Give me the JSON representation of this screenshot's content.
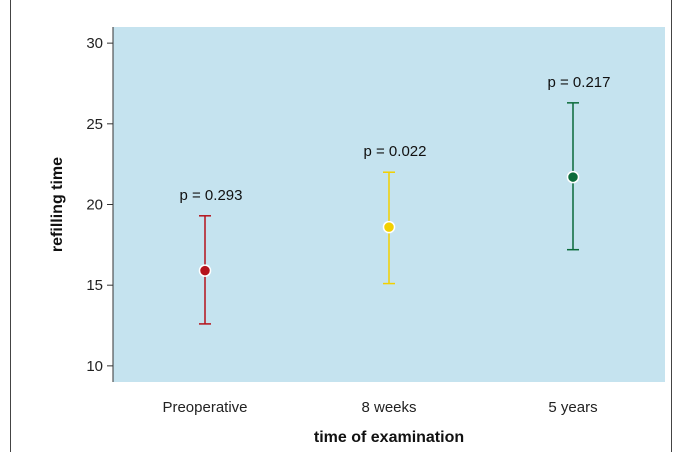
{
  "chart_data": {
    "type": "scatter",
    "title": "",
    "xlabel": "time of examination",
    "ylabel": "refilling time",
    "categories": [
      "Preoperative",
      "8 weeks",
      "5 years"
    ],
    "ylim": [
      9,
      31
    ],
    "yticks": [
      10,
      15,
      20,
      25,
      30
    ],
    "grid": false,
    "background": "#c5e3ef",
    "points": [
      {
        "category": "Preoperative",
        "mean": 15.9,
        "lower": 12.6,
        "upper": 19.3,
        "label": "p = 0.293",
        "color": "#b5121b"
      },
      {
        "category": "8 weeks",
        "mean": 18.6,
        "lower": 15.1,
        "upper": 22.0,
        "label": "p = 0.022",
        "color": "#f2d000"
      },
      {
        "category": "5 years",
        "mean": 21.7,
        "lower": 17.2,
        "upper": 26.3,
        "label": "p = 0.217",
        "color": "#0b6b3a"
      }
    ]
  }
}
